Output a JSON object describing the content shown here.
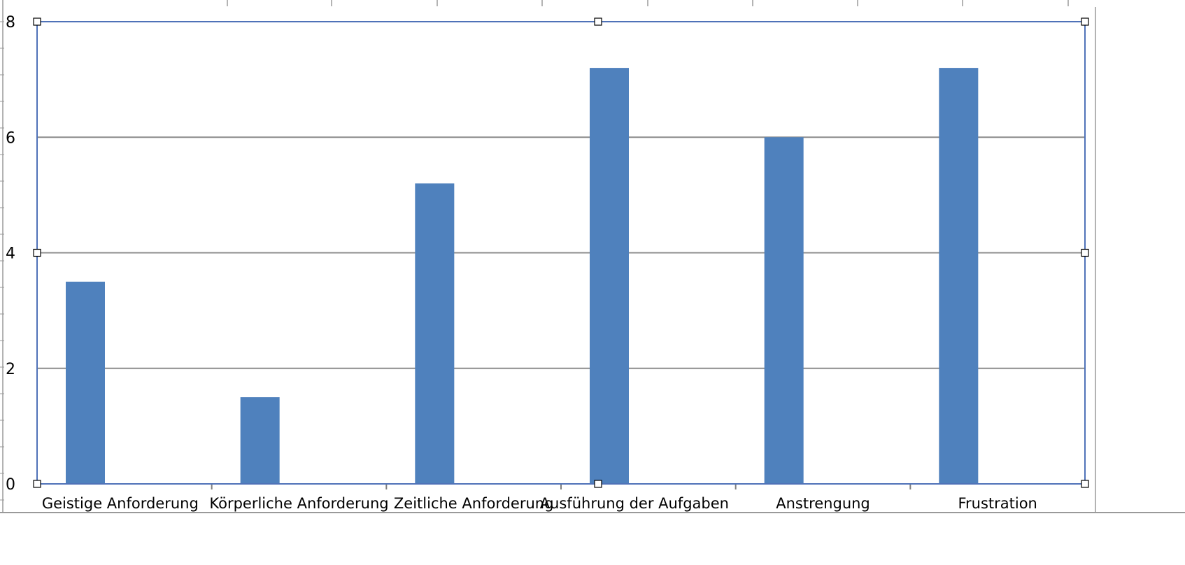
{
  "chart_data": {
    "type": "bar",
    "title": "",
    "xlabel": "",
    "ylabel": "",
    "categories": [
      "Geistige Anforderung",
      "Körperliche Anforderung",
      "Zeitliche Anforderung",
      "Ausführung der Aufgaben",
      "Anstrengung",
      "Frustration"
    ],
    "values": [
      3.5,
      1.5,
      5.2,
      7.2,
      6.0,
      7.2
    ],
    "ylim": [
      0,
      8
    ],
    "yticks": [
      "0",
      "2",
      "4",
      "6",
      "8"
    ],
    "grid": true,
    "legend": "none",
    "colors": {
      "bar": "#4f81bd",
      "gridline": "#8c8c8c",
      "chart_border": "#4f72b8",
      "handle": "#000000",
      "sheet_lines": "#9a9a9a"
    }
  }
}
